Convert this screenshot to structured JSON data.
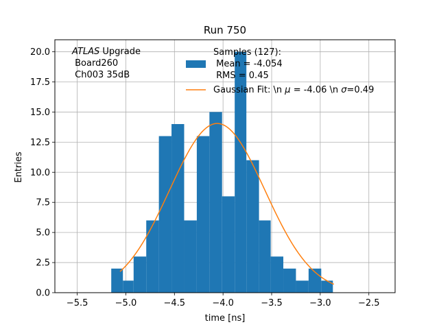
{
  "chart_data": {
    "type": "bar",
    "title": "Run 750",
    "xlabel": "time [ns]",
    "ylabel": "Entries",
    "xlim": [
      -5.73,
      -2.23
    ],
    "ylim": [
      0,
      21
    ],
    "grid": true,
    "xticks": [
      -5.5,
      -5.0,
      -4.5,
      -4.0,
      -3.5,
      -3.0,
      -2.5
    ],
    "xtick_labels": [
      "−5.5",
      "−5.0",
      "−4.5",
      "−4.0",
      "−3.5",
      "−3.0",
      "−2.5"
    ],
    "yticks": [
      0,
      2.5,
      5,
      7.5,
      10,
      12.5,
      15,
      17.5,
      20
    ],
    "ytick_labels": [
      "0.0",
      "2.5",
      "5.0",
      "7.5",
      "10.0",
      "12.5",
      "15.0",
      "17.5",
      "20.0"
    ],
    "histogram": {
      "bin_edges": [
        -5.15,
        -5.03,
        -4.92,
        -4.79,
        -4.66,
        -4.53,
        -4.4,
        -4.27,
        -4.14,
        -4.01,
        -3.88,
        -3.76,
        -3.63,
        -3.51,
        -3.38,
        -3.25,
        -3.12,
        -2.99,
        -2.87,
        -2.76
      ],
      "counts": [
        2,
        1,
        3,
        6,
        13,
        14,
        6,
        13,
        15,
        8,
        20,
        11,
        6,
        3,
        2,
        1,
        2,
        1,
        0
      ],
      "color": "#1f77b4"
    },
    "fit": {
      "mu": -4.06,
      "sigma": 0.49,
      "amplitude": 14.05,
      "x_range": [
        -5.06,
        -2.86
      ],
      "color": "#ff7f0e"
    },
    "annotation": {
      "italic": "ATLAS",
      "first_rest": " Upgrade",
      "lines": [
        " Board260",
        " Ch003 35dB"
      ]
    },
    "legend": {
      "position": "upper-right",
      "hist_label": [
        "Samples (127):",
        " Mean = -4.054",
        " RMS = 0.45"
      ],
      "fit_label_a": "Gaussian Fit: \\n ",
      "fit_mu_symbol": "μ",
      "fit_label_b": " = -4.06 \\n ",
      "fit_sigma_symbol": "σ",
      "fit_label_c": "=0.49"
    }
  }
}
